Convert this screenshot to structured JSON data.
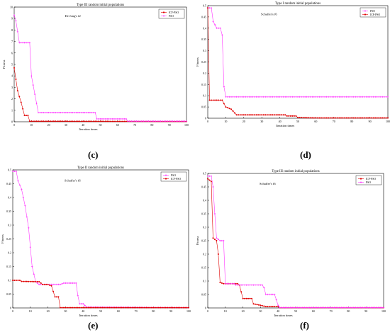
{
  "colors": {
    "magenta": "#ff33ff",
    "red": "#e00000",
    "axis": "#000000"
  },
  "chart_data": [
    {
      "panel_label": "(c)",
      "type": "line",
      "title": "Type III random initial populations",
      "annotation": "De Jong's f2",
      "xlabel": "Iteration times",
      "ylabel": "Fitness",
      "xlim": [
        0,
        100
      ],
      "ylim": [
        0,
        10
      ],
      "xticks": [
        0,
        10,
        20,
        30,
        40,
        50,
        60,
        70,
        80,
        90,
        100
      ],
      "yticks": [
        0,
        1,
        2,
        3,
        4,
        5,
        6,
        7,
        8,
        9,
        10
      ],
      "legend_position": "top-right",
      "series": [
        {
          "name": "ICF-PSO",
          "color": "#e00000",
          "marker": "circle",
          "points": [
            [
              0,
              4.7
            ],
            [
              2,
              2.7
            ],
            [
              4,
              1.7
            ],
            [
              6,
              0.55
            ],
            [
              8,
              0.55
            ],
            [
              9,
              0.05
            ],
            [
              100,
              0.02
            ]
          ]
        },
        {
          "name": "PSO",
          "color": "#ff33ff",
          "marker": "star",
          "points": [
            [
              0,
              9.3
            ],
            [
              1,
              8.8
            ],
            [
              3,
              6.9
            ],
            [
              9,
              6.9
            ],
            [
              10,
              4.0
            ],
            [
              14,
              0.8
            ],
            [
              47,
              0.8
            ],
            [
              48,
              0.25
            ],
            [
              65,
              0.25
            ],
            [
              66,
              0.05
            ],
            [
              100,
              0.05
            ]
          ]
        }
      ]
    },
    {
      "panel_label": "(d)",
      "type": "line",
      "title": "Type I random initial populations",
      "annotation": "Schaffer's f6",
      "xlabel": "Iteration times",
      "ylabel": "Fitness",
      "xlim": [
        0,
        100
      ],
      "ylim": [
        0,
        0.5
      ],
      "xticks": [
        0,
        10,
        20,
        30,
        40,
        50,
        60,
        70,
        80,
        90,
        100
      ],
      "yticks": [
        0,
        0.05,
        0.1,
        0.15,
        0.2,
        0.25,
        0.3,
        0.35,
        0.4,
        0.45,
        0.5
      ],
      "legend_position": "top-right",
      "series": [
        {
          "name": "PSO",
          "color": "#ff33ff",
          "marker": "star",
          "points": [
            [
              0,
              0.49
            ],
            [
              2,
              0.49
            ],
            [
              3,
              0.43
            ],
            [
              5,
              0.4
            ],
            [
              7,
              0.4
            ],
            [
              8,
              0.37
            ],
            [
              9,
              0.14
            ],
            [
              10,
              0.095
            ],
            [
              100,
              0.095
            ]
          ]
        },
        {
          "name": "ICF-PSO",
          "color": "#e00000",
          "marker": "circle",
          "points": [
            [
              0,
              0.49
            ],
            [
              1,
              0.08
            ],
            [
              8,
              0.08
            ],
            [
              10,
              0.05
            ],
            [
              13,
              0.04
            ],
            [
              16,
              0.015
            ],
            [
              43,
              0.015
            ],
            [
              44,
              0.01
            ],
            [
              49,
              0.01
            ],
            [
              50,
              0.003
            ],
            [
              60,
              0.001
            ],
            [
              100,
              0.001
            ]
          ]
        }
      ]
    },
    {
      "panel_label": "(e)",
      "type": "line",
      "title": "Type II random initial populations",
      "annotation": "Schaffer's f6",
      "xlabel": "Iteration times",
      "ylabel": "Fitness",
      "xlim": [
        0,
        100
      ],
      "ylim": [
        0,
        0.5
      ],
      "xticks": [
        0,
        10,
        20,
        30,
        40,
        50,
        60,
        70,
        80,
        90,
        100
      ],
      "yticks": [
        0,
        0.05,
        0.1,
        0.15,
        0.2,
        0.25,
        0.3,
        0.35,
        0.4,
        0.45,
        0.5
      ],
      "legend_position": "top-right",
      "series": [
        {
          "name": "PSO",
          "color": "#ff33ff",
          "marker": "star",
          "points": [
            [
              0,
              0.495
            ],
            [
              2,
              0.495
            ],
            [
              3,
              0.46
            ],
            [
              5,
              0.43
            ],
            [
              7,
              0.37
            ],
            [
              9,
              0.29
            ],
            [
              11,
              0.15
            ],
            [
              13,
              0.095
            ],
            [
              15,
              0.085
            ],
            [
              27,
              0.085
            ],
            [
              29,
              0.09
            ],
            [
              36,
              0.09
            ],
            [
              37,
              0.045
            ],
            [
              38,
              0.015
            ],
            [
              40,
              0.015
            ],
            [
              42,
              0.003
            ],
            [
              100,
              0.001
            ]
          ]
        },
        {
          "name": "ICF-PSO",
          "color": "#e00000",
          "marker": "circle",
          "points": [
            [
              0,
              0.1
            ],
            [
              4,
              0.1
            ],
            [
              5,
              0.096
            ],
            [
              15,
              0.095
            ],
            [
              17,
              0.085
            ],
            [
              20,
              0.085
            ],
            [
              22,
              0.08
            ],
            [
              24,
              0.04
            ],
            [
              26,
              0.04
            ],
            [
              27,
              0.001
            ],
            [
              100,
              0.001
            ]
          ]
        }
      ]
    },
    {
      "panel_label": "(f)",
      "type": "line",
      "title": "Type III random initial populations",
      "annotation": "Schaffer's f6",
      "xlabel": "Iteration times",
      "ylabel": "Fitness",
      "xlim": [
        0,
        100
      ],
      "ylim": [
        0,
        0.5
      ],
      "xticks": [
        0,
        10,
        20,
        30,
        40,
        50,
        60,
        70,
        80,
        90,
        100
      ],
      "yticks": [
        0,
        0.05,
        0.1,
        0.15,
        0.2,
        0.25,
        0.3,
        0.35,
        0.4,
        0.45,
        0.5
      ],
      "legend_position": "top-right",
      "series": [
        {
          "name": "ICF-PSO",
          "color": "#e00000",
          "marker": "circle",
          "points": [
            [
              0,
              0.48
            ],
            [
              2,
              0.47
            ],
            [
              3,
              0.26
            ],
            [
              5,
              0.25
            ],
            [
              6,
              0.2
            ],
            [
              7,
              0.095
            ],
            [
              9,
              0.09
            ],
            [
              17,
              0.09
            ],
            [
              18,
              0.085
            ],
            [
              20,
              0.035
            ],
            [
              25,
              0.035
            ],
            [
              26,
              0.015
            ],
            [
              30,
              0.01
            ],
            [
              33,
              0.005
            ],
            [
              40,
              0.005
            ],
            [
              41,
              0.001
            ],
            [
              100,
              0.001
            ]
          ]
        },
        {
          "name": "PSO",
          "color": "#ff33ff",
          "marker": "star",
          "points": [
            [
              0,
              0.49
            ],
            [
              2,
              0.49
            ],
            [
              3,
              0.45
            ],
            [
              4,
              0.35
            ],
            [
              5,
              0.26
            ],
            [
              7,
              0.25
            ],
            [
              9,
              0.25
            ],
            [
              10,
              0.09
            ],
            [
              15,
              0.09
            ],
            [
              16,
              0.085
            ],
            [
              31,
              0.085
            ],
            [
              32,
              0.075
            ],
            [
              33,
              0.05
            ],
            [
              38,
              0.05
            ],
            [
              40,
              0.01
            ],
            [
              41,
              0.001
            ],
            [
              100,
              0.001
            ]
          ]
        }
      ]
    }
  ]
}
